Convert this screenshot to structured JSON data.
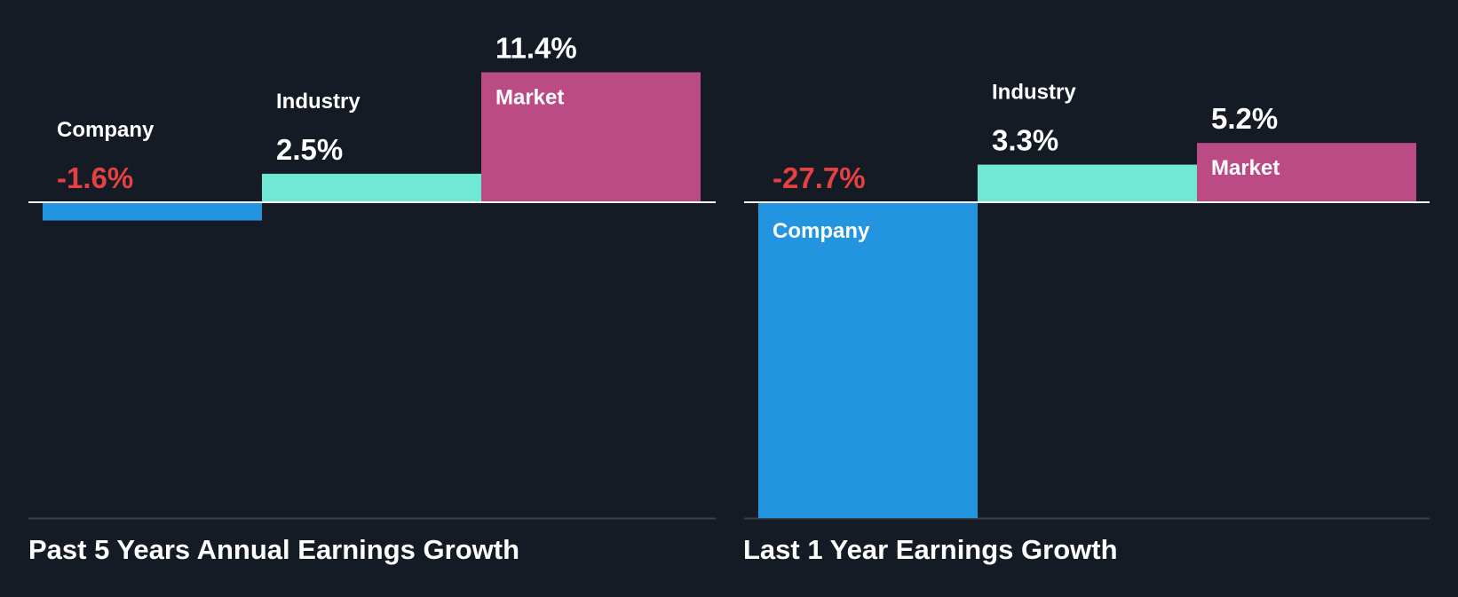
{
  "chart_data": [
    {
      "type": "bar",
      "title": "Past 5 Years Annual Earnings Growth",
      "categories": [
        "Company",
        "Industry",
        "Market"
      ],
      "values": [
        -1.6,
        2.5,
        11.4
      ],
      "value_labels": [
        "-1.6%",
        "2.5%",
        "11.4%"
      ],
      "unit": "%",
      "ylim": [
        -27.7,
        11.4
      ],
      "colors": [
        "#2394df",
        "#71e7d6",
        "#bb4b85"
      ],
      "negative_label_color": "#e64141",
      "label_color": "#ffffff"
    },
    {
      "type": "bar",
      "title": "Last 1 Year Earnings Growth",
      "categories": [
        "Company",
        "Industry",
        "Market"
      ],
      "values": [
        -27.7,
        3.3,
        5.2
      ],
      "value_labels": [
        "-27.7%",
        "3.3%",
        "5.2%"
      ],
      "unit": "%",
      "ylim": [
        -27.7,
        11.4
      ],
      "colors": [
        "#2394df",
        "#71e7d6",
        "#bb4b85"
      ],
      "negative_label_color": "#e64141",
      "label_color": "#ffffff"
    }
  ]
}
